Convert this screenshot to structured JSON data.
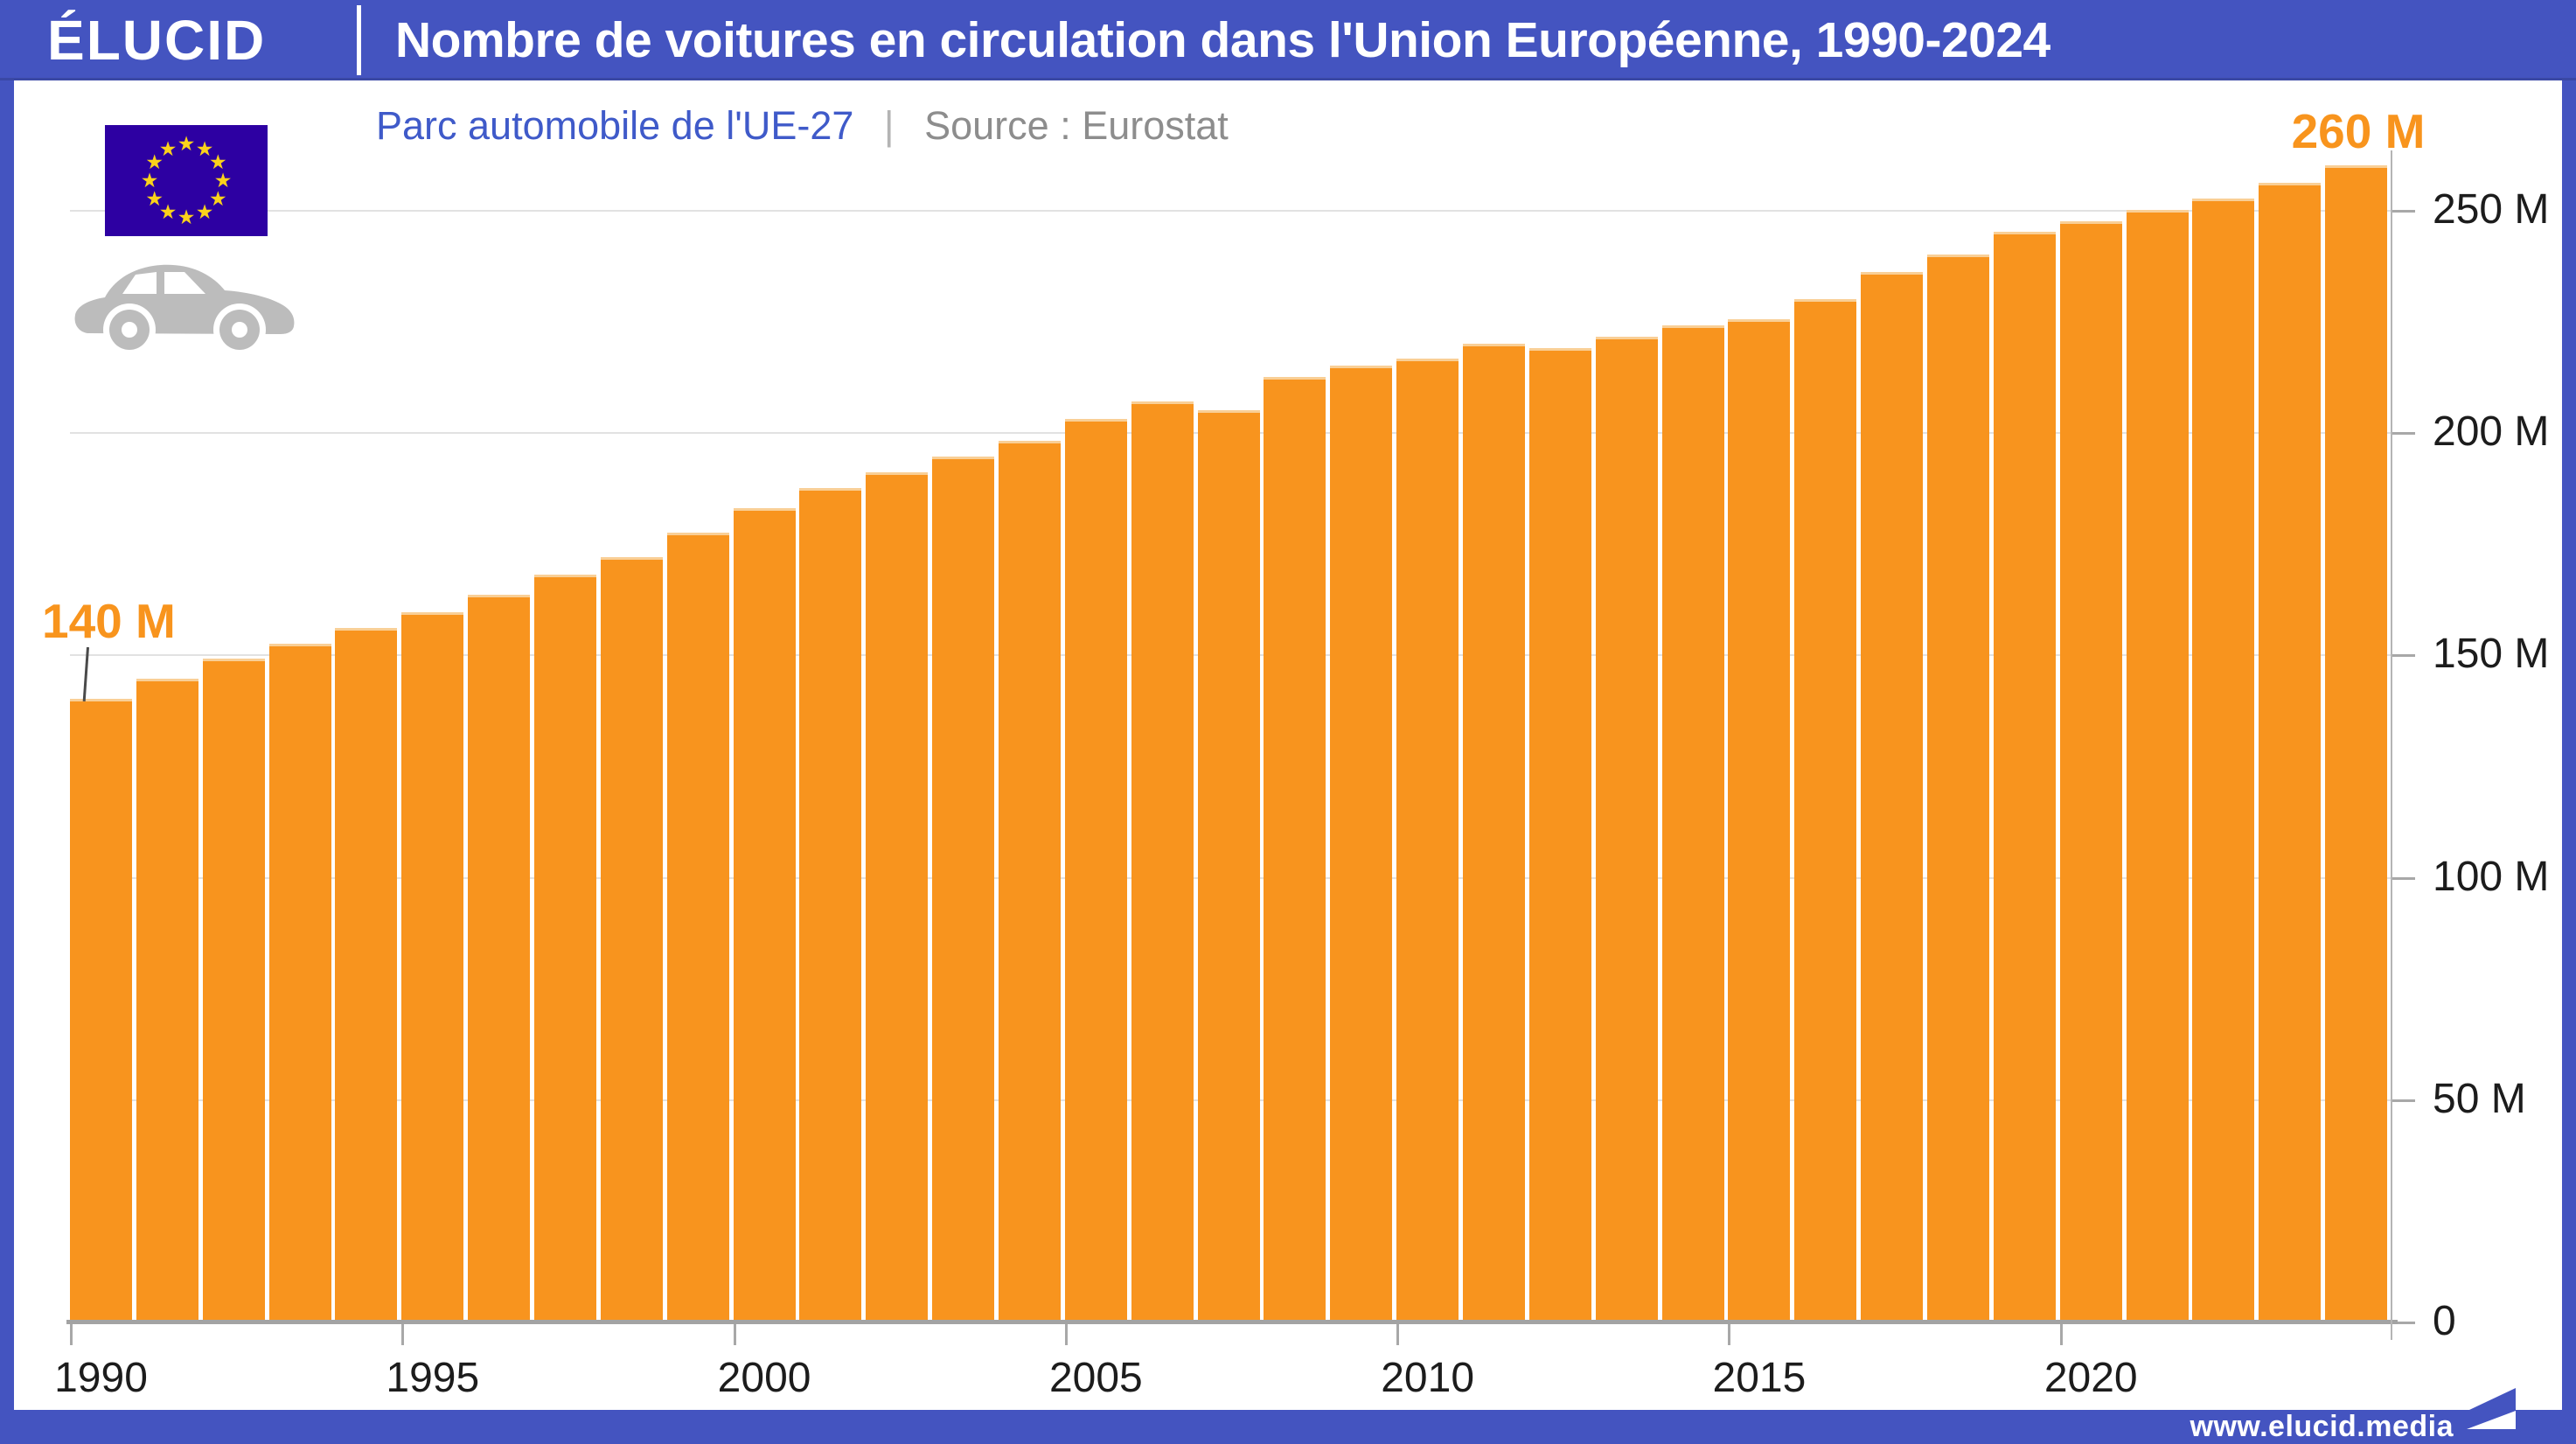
{
  "header": {
    "logo": "ÉLUCID",
    "title": "Nombre de voitures en circulation dans l'Union Européenne, 1990-2024"
  },
  "subtitle": {
    "label": "Parc automobile de l'UE-27",
    "separator": "|",
    "source": "Source : Eurostat"
  },
  "annotations": {
    "start_label": "140 M",
    "end_label": "260 M"
  },
  "footer": {
    "url": "www.elucid.media"
  },
  "colors": {
    "brand_blue": "#4454c0",
    "bar_orange": "#f8941e",
    "annotation_orange": "#f8941d",
    "subtitle_blue": "#3f5ac9",
    "source_grey": "#8d8d8d",
    "axis_text": "#1c1c1c",
    "flag_blue": "#2d00a2",
    "star_yellow": "#fbd21b",
    "car_grey": "#bcbcbc",
    "gridline_grey": "#e2e2e2"
  },
  "chart_data": {
    "type": "bar",
    "title": "Nombre de voitures en circulation dans l'Union Européenne, 1990-2024",
    "subtitle": "Parc automobile de l'UE-27",
    "source": "Source : Eurostat",
    "unit": "millions of cars",
    "bar_color": "#f8941e",
    "grid": "horizontal, every 50 M, light grey",
    "legend_position": "none",
    "ylim": [
      0,
      262
    ],
    "categories": [
      1990,
      1991,
      1992,
      1993,
      1994,
      1995,
      1996,
      1997,
      1998,
      1999,
      2000,
      2001,
      2002,
      2003,
      2004,
      2005,
      2006,
      2007,
      2008,
      2009,
      2010,
      2011,
      2012,
      2013,
      2014,
      2015,
      2016,
      2017,
      2018,
      2019,
      2020,
      2021,
      2022,
      2023,
      2024
    ],
    "values": [
      140,
      144.5,
      149,
      152.5,
      156,
      159.5,
      163.5,
      168,
      172,
      177.5,
      183,
      187.5,
      191,
      194.5,
      198,
      203,
      207,
      205,
      212.5,
      215,
      216.5,
      220,
      219,
      221.5,
      224,
      225.5,
      230,
      236,
      240,
      245,
      247.5,
      250,
      252.5,
      256,
      260
    ],
    "yticks": [
      {
        "value": 250,
        "label": "250 M"
      },
      {
        "value": 200,
        "label": "200 M"
      },
      {
        "value": 150,
        "label": "150 M"
      },
      {
        "value": 100,
        "label": "100 M"
      },
      {
        "value": 50,
        "label": "50 M"
      },
      {
        "value": 0,
        "label": "0"
      }
    ],
    "xticks": [
      1990,
      1995,
      2000,
      2005,
      2010,
      2015,
      2020
    ],
    "annotations": [
      {
        "year": 1990,
        "label": "140 M"
      },
      {
        "year": 2024,
        "label": "260 M"
      }
    ]
  }
}
